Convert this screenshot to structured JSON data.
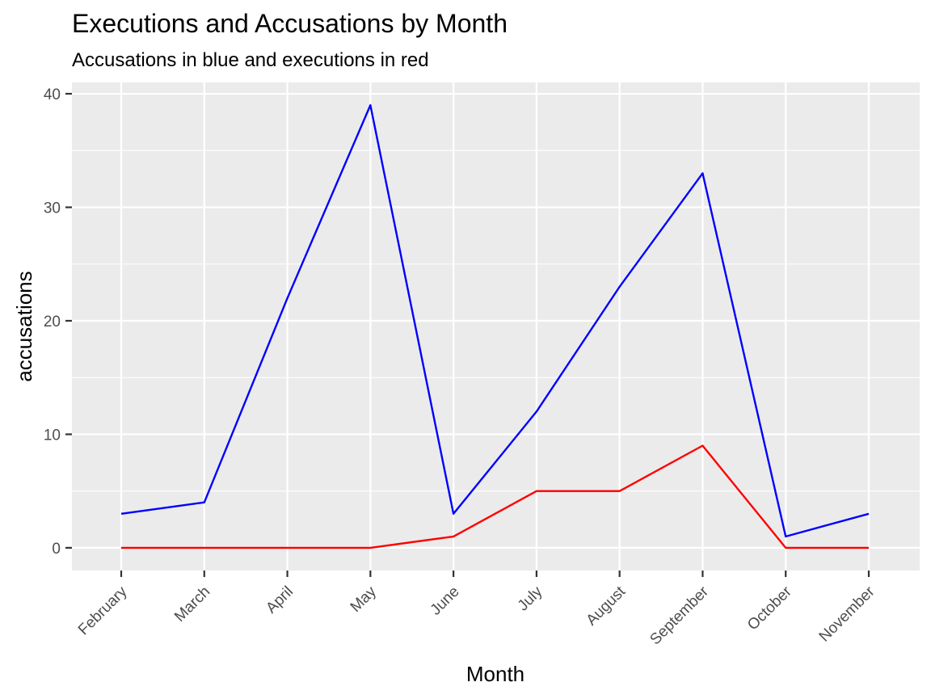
{
  "chart_data": {
    "type": "line",
    "title": "Executions and Accusations by Month",
    "subtitle": "Accusations in blue and executions in red",
    "xlabel": "Month",
    "ylabel": "accusations",
    "categories": [
      "February",
      "March",
      "April",
      "May",
      "June",
      "July",
      "August",
      "September",
      "October",
      "November"
    ],
    "series": [
      {
        "color": "#0000ff",
        "values": [
          3,
          4,
          22,
          39,
          3,
          12,
          23,
          33,
          1,
          3
        ]
      },
      {
        "color": "#ff0000",
        "values": [
          0,
          0,
          0,
          0,
          1,
          5,
          5,
          9,
          0,
          0
        ]
      }
    ],
    "yticks": [
      0,
      10,
      20,
      30,
      40
    ],
    "ylim": [
      -2,
      41
    ],
    "grid": true,
    "legend": "none",
    "panel_background": "#ebebeb",
    "grid_color": "#ffffff"
  }
}
